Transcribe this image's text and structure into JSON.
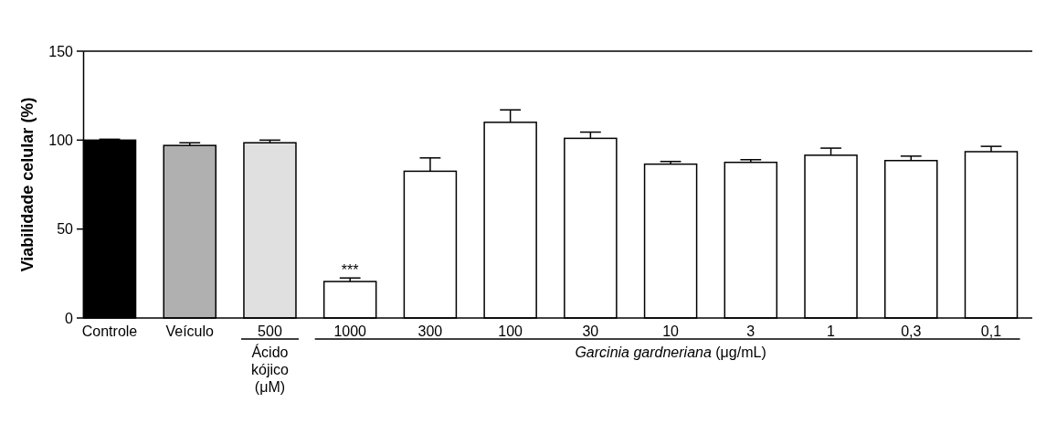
{
  "chart_data": {
    "type": "bar",
    "ylabel": "Viabilidade celular (%)",
    "categories": [
      "Controle",
      "Veículo",
      "500",
      "1000",
      "300",
      "100",
      "30",
      "10",
      "3",
      "1",
      "0,3",
      "0,1"
    ],
    "values": [
      100,
      97,
      98.5,
      20.5,
      82.5,
      110,
      101,
      86.5,
      87.5,
      91.5,
      88.5,
      93.5
    ],
    "errors": [
      [
        100,
        100.5
      ],
      [
        97,
        98.5
      ],
      [
        98.5,
        100
      ],
      [
        20.5,
        22.5
      ],
      [
        82.5,
        90
      ],
      [
        110,
        117
      ],
      [
        101,
        104.5
      ],
      [
        86.5,
        88
      ],
      [
        87.5,
        89
      ],
      [
        91.5,
        95.5
      ],
      [
        88.5,
        91
      ],
      [
        93.5,
        96.5
      ]
    ],
    "colors": [
      "#000000",
      "#b0b0b0",
      "#e0e0e0",
      "#ffffff",
      "#ffffff",
      "#ffffff",
      "#ffffff",
      "#ffffff",
      "#ffffff",
      "#ffffff",
      "#ffffff",
      "#ffffff"
    ],
    "ylim": [
      0,
      150
    ],
    "yticks": [
      0,
      50,
      100,
      150
    ],
    "grid": false,
    "annotations": [
      {
        "text": "***",
        "x": "1000",
        "y": 22.5
      },
      "Ácido kójico (μM)",
      "Garcinia gardneriana (μg/mL)"
    ]
  }
}
